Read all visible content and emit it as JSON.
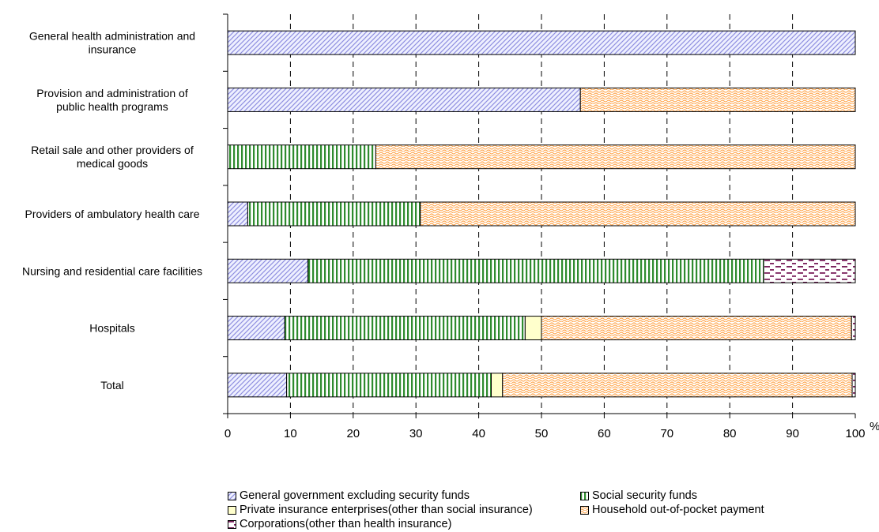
{
  "chart_data": {
    "type": "bar",
    "orientation": "horizontal",
    "stacked": true,
    "categories": [
      [
        "General health administration and",
        "insurance"
      ],
      [
        "Provision and administration of",
        "public health programs"
      ],
      [
        "Retail sale and other providers of",
        "medical goods"
      ],
      [
        "Providers of ambulatory health care"
      ],
      [
        "Nursing and residential care facilities"
      ],
      [
        "Hospitals"
      ],
      [
        "Total"
      ]
    ],
    "series": [
      {
        "name": "General government excluding security funds",
        "pattern": "diag",
        "color": "#8f8fe0",
        "values": [
          100,
          56.2,
          0,
          3.2,
          12.8,
          9.1,
          9.4
        ]
      },
      {
        "name": "Social security funds",
        "pattern": "vert",
        "color": "#2e8b2e",
        "values": [
          0,
          0,
          23.6,
          27.5,
          72.6,
          38.3,
          32.6
        ]
      },
      {
        "name": "Private insurance enterprises(other than social insurance)",
        "pattern": "solid",
        "color": "#ffffcc",
        "values": [
          0,
          0,
          0,
          0,
          0,
          2.6,
          1.8
        ]
      },
      {
        "name": "Household out-of-pocket payment",
        "pattern": "wave",
        "color": "#ffa64d",
        "values": [
          0,
          43.8,
          76.4,
          69.3,
          0,
          49.4,
          55.7
        ]
      },
      {
        "name": "Corporations(other than health insurance)",
        "pattern": "dash",
        "color": "#7a1f5c",
        "values": [
          0,
          0,
          0,
          0,
          14.6,
          0.6,
          0.5
        ]
      }
    ],
    "xlim": [
      0,
      100
    ],
    "xticks": [
      "0",
      "10",
      "20",
      "30",
      "40",
      "50",
      "60",
      "70",
      "80",
      "90",
      "100"
    ],
    "x_unit": "%",
    "grid": "vertical dashed",
    "legend_position": "bottom"
  }
}
